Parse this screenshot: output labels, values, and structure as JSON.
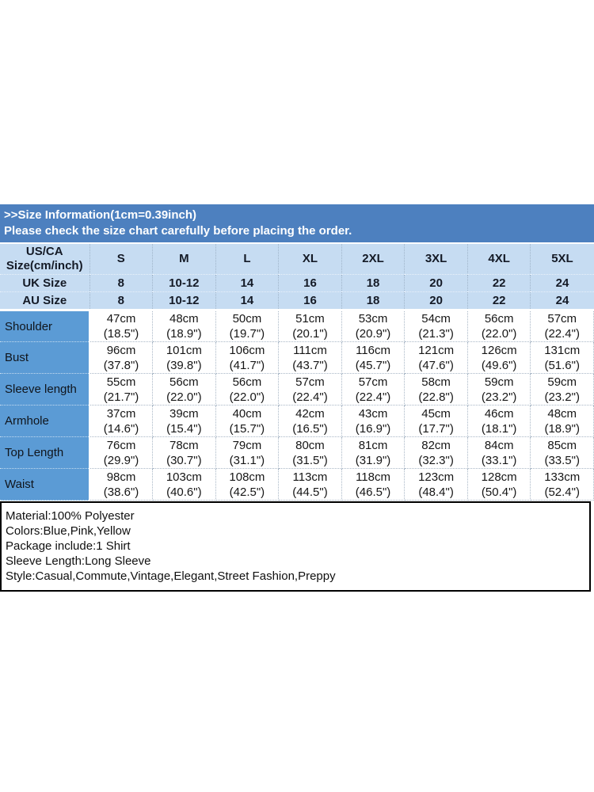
{
  "colors": {
    "banner_blue": "#4d80bf",
    "header_light_blue": "#c6dcf2",
    "label_blue": "#5b9bd5",
    "details_border": "#000000",
    "banner_text": "#ffffff",
    "table_text": "#141a26"
  },
  "banner": {
    "title": ">>Size Information(1cm=0.39inch)",
    "subtitle": "Please check the size chart carefully before placing the order."
  },
  "chart_data": {
    "type": "table",
    "title": ">>Size Information(1cm=0.39inch)",
    "subtitle": "Please check the size chart carefully before placing the order.",
    "corner_header_line1": "US/CA",
    "corner_header_line2": "Size(cm/inch)",
    "size_columns": [
      "S",
      "M",
      "L",
      "XL",
      "2XL",
      "3XL",
      "4XL",
      "5XL"
    ],
    "region_rows": [
      {
        "label": "UK Size",
        "values": [
          "8",
          "10-12",
          "14",
          "16",
          "18",
          "20",
          "22",
          "24"
        ]
      },
      {
        "label": "AU Size",
        "values": [
          "8",
          "10-12",
          "14",
          "16",
          "18",
          "20",
          "22",
          "24"
        ]
      }
    ],
    "measurement_rows": [
      {
        "label": "Shoulder",
        "values": [
          {
            "cm": "47cm",
            "inch": "(18.5\")"
          },
          {
            "cm": "48cm",
            "inch": "(18.9\")"
          },
          {
            "cm": "50cm",
            "inch": "(19.7\")"
          },
          {
            "cm": "51cm",
            "inch": "(20.1\")"
          },
          {
            "cm": "53cm",
            "inch": "(20.9\")"
          },
          {
            "cm": "54cm",
            "inch": "(21.3\")"
          },
          {
            "cm": "56cm",
            "inch": "(22.0\")"
          },
          {
            "cm": "57cm",
            "inch": "(22.4\")"
          }
        ]
      },
      {
        "label": "Bust",
        "values": [
          {
            "cm": "96cm",
            "inch": "(37.8\")"
          },
          {
            "cm": "101cm",
            "inch": "(39.8\")"
          },
          {
            "cm": "106cm",
            "inch": "(41.7\")"
          },
          {
            "cm": "111cm",
            "inch": "(43.7\")"
          },
          {
            "cm": "116cm",
            "inch": "(45.7\")"
          },
          {
            "cm": "121cm",
            "inch": "(47.6\")"
          },
          {
            "cm": "126cm",
            "inch": "(49.6\")"
          },
          {
            "cm": "131cm",
            "inch": "(51.6\")"
          }
        ]
      },
      {
        "label": "Sleeve length",
        "values": [
          {
            "cm": "55cm",
            "inch": "(21.7\")"
          },
          {
            "cm": "56cm",
            "inch": "(22.0\")"
          },
          {
            "cm": "56cm",
            "inch": "(22.0\")"
          },
          {
            "cm": "57cm",
            "inch": "(22.4\")"
          },
          {
            "cm": "57cm",
            "inch": "(22.4\")"
          },
          {
            "cm": "58cm",
            "inch": "(22.8\")"
          },
          {
            "cm": "59cm",
            "inch": "(23.2\")"
          },
          {
            "cm": "59cm",
            "inch": "(23.2\")"
          }
        ]
      },
      {
        "label": "Armhole",
        "values": [
          {
            "cm": "37cm",
            "inch": "(14.6\")"
          },
          {
            "cm": "39cm",
            "inch": "(15.4\")"
          },
          {
            "cm": "40cm",
            "inch": "(15.7\")"
          },
          {
            "cm": "42cm",
            "inch": "(16.5\")"
          },
          {
            "cm": "43cm",
            "inch": "(16.9\")"
          },
          {
            "cm": "45cm",
            "inch": "(17.7\")"
          },
          {
            "cm": "46cm",
            "inch": "(18.1\")"
          },
          {
            "cm": "48cm",
            "inch": "(18.9\")"
          }
        ]
      },
      {
        "label": "Top Length",
        "values": [
          {
            "cm": "76cm",
            "inch": "(29.9\")"
          },
          {
            "cm": "78cm",
            "inch": "(30.7\")"
          },
          {
            "cm": "79cm",
            "inch": "(31.1\")"
          },
          {
            "cm": "80cm",
            "inch": "(31.5\")"
          },
          {
            "cm": "81cm",
            "inch": "(31.9\")"
          },
          {
            "cm": "82cm",
            "inch": "(32.3\")"
          },
          {
            "cm": "84cm",
            "inch": "(33.1\")"
          },
          {
            "cm": "85cm",
            "inch": "(33.5\")"
          }
        ]
      },
      {
        "label": "Waist",
        "values": [
          {
            "cm": "98cm",
            "inch": "(38.6\")"
          },
          {
            "cm": "103cm",
            "inch": "(40.6\")"
          },
          {
            "cm": "108cm",
            "inch": "(42.5\")"
          },
          {
            "cm": "113cm",
            "inch": "(44.5\")"
          },
          {
            "cm": "118cm",
            "inch": "(46.5\")"
          },
          {
            "cm": "123cm",
            "inch": "(48.4\")"
          },
          {
            "cm": "128cm",
            "inch": "(50.4\")"
          },
          {
            "cm": "133cm",
            "inch": "(52.4\")"
          }
        ]
      }
    ]
  },
  "details_box": {
    "lines": [
      "Material:100% Polyester",
      "Colors:Blue,Pink,Yellow",
      "Package include:1 Shirt",
      "Sleeve Length:Long Sleeve",
      "Style:Casual,Commute,Vintage,Elegant,Street Fashion,Preppy"
    ]
  }
}
